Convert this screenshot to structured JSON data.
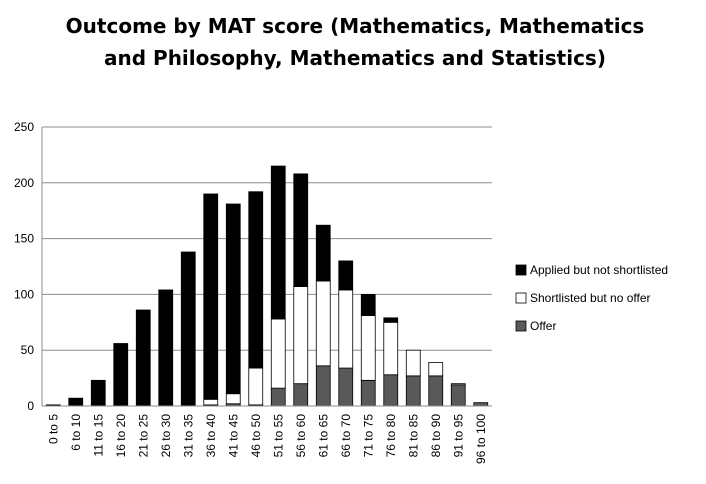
{
  "chart_data": {
    "type": "bar",
    "stacked": true,
    "title": "Outcome by MAT score (Mathematics, Mathematics and Philosophy, Mathematics and Statistics)",
    "xlabel": "",
    "ylabel": "",
    "ylim": [
      0,
      250
    ],
    "yticks": [
      "0",
      "50",
      "100",
      "150",
      "200",
      "250"
    ],
    "grid": true,
    "legend_position": "right",
    "categories": [
      "0 to 5",
      "6 to 10",
      "11 to 15",
      "16 to 20",
      "21 to 25",
      "26 to 30",
      "31 to 35",
      "36 to 40",
      "41 to 45",
      "46 to 50",
      "51 to 55",
      "56 to 60",
      "61 to 65",
      "66 to 70",
      "71 to 75",
      "76 to 80",
      "81 to 85",
      "86 to 90",
      "91 to 95",
      "96 to 100"
    ],
    "series": [
      {
        "name": "Offer",
        "color": "#595959",
        "values": [
          0,
          0,
          0,
          0,
          0,
          0,
          0,
          1,
          2,
          1,
          16,
          20,
          36,
          34,
          23,
          28,
          27,
          27,
          19,
          3
        ]
      },
      {
        "name": "Shortlisted but no offer",
        "color": "#ffffff",
        "values": [
          0,
          0,
          0,
          0,
          0,
          0,
          0,
          5,
          9,
          33,
          62,
          87,
          76,
          70,
          58,
          47,
          23,
          12,
          1,
          0
        ]
      },
      {
        "name": "Applied but not shortlisted",
        "color": "#000000",
        "values": [
          1,
          7,
          23,
          56,
          86,
          104,
          138,
          184,
          170,
          158,
          137,
          101,
          50,
          26,
          19,
          4,
          0,
          0,
          0,
          0
        ]
      }
    ],
    "legend_order": [
      "Applied but not shortlisted",
      "Shortlisted but no offer",
      "Offer"
    ]
  }
}
